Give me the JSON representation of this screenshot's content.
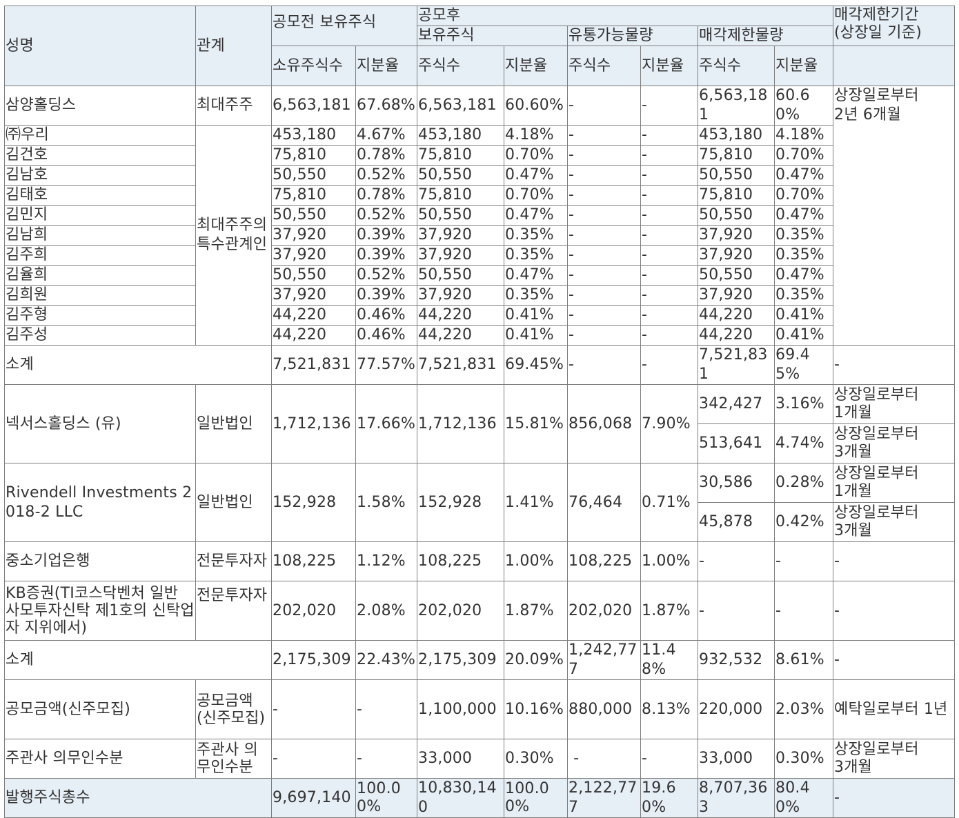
{
  "table": {
    "headers": {
      "name": "성명",
      "relation": "관계",
      "pre_ipo": "공모전 보유주식",
      "post_ipo": "공모후",
      "lockup_period": "매각제한기간\n(상장일 기준)",
      "held": "보유주식",
      "tradable": "유통가능물량",
      "restricted": "매각제한물량",
      "owned_shares": "소유주식수",
      "ratio": "지분율",
      "shares": "주식수"
    },
    "major_group": {
      "relation_top": "최대주주",
      "relation_special": "최대주주의 특수관계인",
      "lockup": "상장일로부터\n2년 6개월",
      "rows": [
        [
          "삼양홀딩스",
          "6,563,181",
          "67.68%",
          "6,563,181",
          "60.60%",
          "-",
          "-",
          "6,563,181",
          "60.60%"
        ],
        [
          "㈜우리",
          "453,180",
          "4.67%",
          "453,180",
          "4.18%",
          "-",
          "-",
          "453,180",
          "4.18%"
        ],
        [
          "김건호",
          "75,810",
          "0.78%",
          "75,810",
          "0.70%",
          "-",
          "-",
          "75,810",
          "0.70%"
        ],
        [
          "김남호",
          "50,550",
          "0.52%",
          "50,550",
          "0.47%",
          "-",
          "-",
          "50,550",
          "0.47%"
        ],
        [
          "김태호",
          "75,810",
          "0.78%",
          "75,810",
          "0.70%",
          "-",
          "-",
          "75,810",
          "0.70%"
        ],
        [
          "김민지",
          "50,550",
          "0.52%",
          "50,550",
          "0.47%",
          "-",
          "-",
          "50,550",
          "0.47%"
        ],
        [
          "김남희",
          "37,920",
          "0.39%",
          "37,920",
          "0.35%",
          "-",
          "-",
          "37,920",
          "0.35%"
        ],
        [
          "김주희",
          "37,920",
          "0.39%",
          "37,920",
          "0.35%",
          "-",
          "-",
          "37,920",
          "0.35%"
        ],
        [
          "김율희",
          "50,550",
          "0.52%",
          "50,550",
          "0.47%",
          "-",
          "-",
          "50,550",
          "0.47%"
        ],
        [
          "김희원",
          "37,920",
          "0.39%",
          "37,920",
          "0.35%",
          "-",
          "-",
          "37,920",
          "0.35%"
        ],
        [
          "김주형",
          "44,220",
          "0.46%",
          "44,220",
          "0.41%",
          "-",
          "-",
          "44,220",
          "0.41%"
        ],
        [
          "김주성",
          "44,220",
          "0.46%",
          "44,220",
          "0.41%",
          "-",
          "-",
          "44,220",
          "0.41%"
        ]
      ],
      "subtotal": [
        "소계",
        "7,521,831",
        "77.57%",
        "7,521,831",
        "69.45%",
        "-",
        "-",
        "7,521,831",
        "69.45%",
        "-"
      ]
    },
    "others": {
      "nexus": {
        "name": "넥서스홀딩스 (유)",
        "relation": "일반법인",
        "pre_shares": "1,712,136",
        "pre_ratio": "17.66%",
        "post_shares": "1,712,136",
        "post_ratio": "15.81%",
        "trad_shares": "856,068",
        "trad_ratio": "7.90%",
        "splits": [
          {
            "shares": "342,427",
            "ratio": "3.16%",
            "period": "상장일로부터\n1개월"
          },
          {
            "shares": "513,641",
            "ratio": "4.74%",
            "period": "상장일로부터\n3개월"
          }
        ]
      },
      "rivendell": {
        "name": "Rivendell Investments 2018-2 LLC",
        "relation": "일반법인",
        "pre_shares": "152,928",
        "pre_ratio": "1.58%",
        "post_shares": "152,928",
        "post_ratio": "1.41%",
        "trad_shares": "76,464",
        "trad_ratio": "0.71%",
        "splits": [
          {
            "shares": "30,586",
            "ratio": "0.28%",
            "period": "상장일로부터\n1개월"
          },
          {
            "shares": "45,878",
            "ratio": "0.42%",
            "period": "상장일로부터\n3개월"
          }
        ]
      },
      "ibk": [
        "중소기업은행",
        "전문투자자",
        "108,225",
        "1.12%",
        "108,225",
        "1.00%",
        "108,225",
        "1.00%",
        "-",
        "-",
        "-"
      ],
      "kb": [
        "KB증권(TI코스닥벤처 일반 사모투자신탁 제1호의 신탁업자 지위에서)",
        "전문투자자",
        "202,020",
        "2.08%",
        "202,020",
        "1.87%",
        "202,020",
        "1.87%",
        "-",
        "-",
        "-"
      ],
      "subtotal": [
        "소계",
        "2,175,309",
        "22.43%",
        "2,175,309",
        "20.09%",
        "1,242,777",
        "11.48%",
        "932,532",
        "8.61%",
        "-"
      ]
    },
    "ipo": [
      "공모금액(신주모집)",
      "공모금액(신주모집)",
      "-",
      "-",
      "1,100,000",
      "10.16%",
      "880,000",
      "8.13%",
      "220,000",
      "2.03%",
      "예탁일로부터 1년"
    ],
    "underwriter": [
      "주관사 의무인수분",
      "주관사 의무인수분",
      "-",
      "-",
      "33,000",
      "0.30%",
      " -",
      "-",
      "33,000",
      "0.30%",
      "상장일로부터\n3개월"
    ],
    "total": [
      "발행주식총수",
      "9,697,140",
      "100.00%",
      "10,830,140",
      "100.00%",
      "2,122,777",
      "19.60%",
      "8,707,363",
      "80.40%",
      "-"
    ]
  }
}
